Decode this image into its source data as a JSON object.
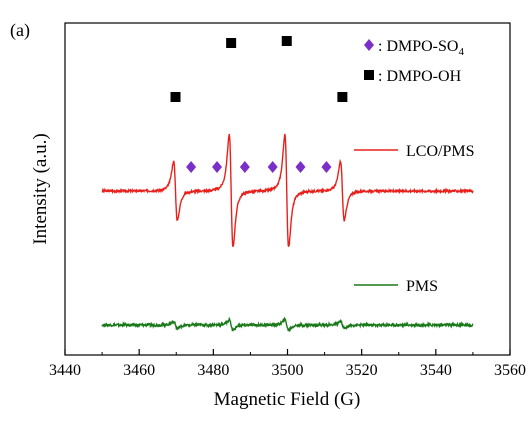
{
  "panel_label": "(a)",
  "chart_data": {
    "type": "line",
    "title": "",
    "xlabel": "Magnetic Field (G)",
    "ylabel": "Intensity (a.u.)",
    "xlim": [
      3440,
      3560
    ],
    "x_ticks": [
      "3440",
      "3460",
      "3480",
      "3500",
      "3520",
      "3540",
      "3560"
    ],
    "x_tick_values": [
      3440,
      3460,
      3480,
      3500,
      3520,
      3540,
      3560
    ],
    "y_ticks_shown": false,
    "grid": false,
    "legend_position": "top-right",
    "colors": {
      "lco_pms": "#e8201c",
      "pms": "#1a7a1a",
      "so4_marker": "#7b2fc9",
      "oh_marker": "#000000",
      "axis": "#000000"
    },
    "series": [
      {
        "name": "LCO/PMS",
        "color": "#e8201c",
        "x_range": [
          3450,
          3550
        ],
        "baseline_offset": 0.55,
        "peaks_G": [
          3469.8,
          3484.8,
          3499.8,
          3514.8
        ],
        "peak_amplitudes": [
          1.0,
          1.9,
          1.9,
          1.0
        ]
      },
      {
        "name": "PMS",
        "color": "#1a7a1a",
        "x_range": [
          3450,
          3550
        ],
        "baseline_offset": 0.0,
        "peaks_G": [
          3469.8,
          3484.8,
          3499.8,
          3514.8
        ],
        "peak_amplitudes": [
          0.12,
          0.18,
          0.18,
          0.12
        ]
      }
    ],
    "markers": {
      "dmpo_oh": {
        "symbol": "square",
        "label": "DMPO-OH",
        "x": [
          3469.8,
          3484.8,
          3499.8,
          3514.8
        ]
      },
      "dmpo_so4": {
        "symbol": "diamond",
        "label": "DMPO-SO",
        "subscript": "4",
        "x": [
          3474,
          3481,
          3488.5,
          3496,
          3503.5,
          3510.5
        ]
      }
    },
    "legend_markers": [
      {
        "symbol": "diamond",
        "text": ": DMPO-SO",
        "sub": "4"
      },
      {
        "symbol": "square",
        "text": ": DMPO-OH"
      }
    ]
  }
}
